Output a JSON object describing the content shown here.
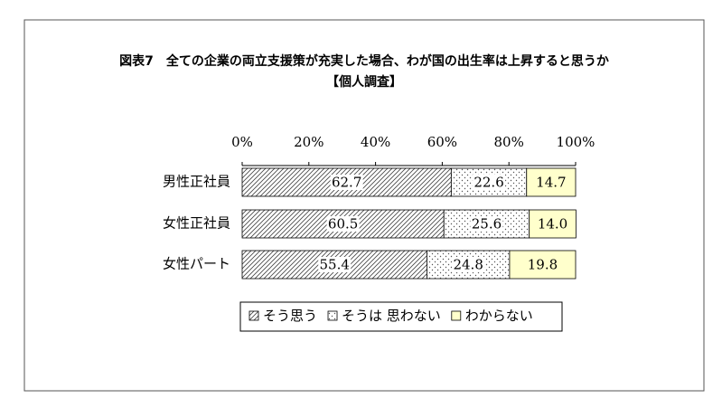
{
  "chart_data": {
    "type": "stacked-bar-horizontal",
    "title": "図表7　全ての企業の両立支援策が充実した場合、わが国の出生率は上昇すると思うか",
    "subtitle": "【個人調査】",
    "categories": [
      "男性正社員",
      "女性正社員",
      "女性パート"
    ],
    "series": [
      {
        "name": "そう思う",
        "color": "#ffffff",
        "pattern": "hatch",
        "values": [
          62.7,
          60.5,
          55.4
        ]
      },
      {
        "name": "そうは 思わない",
        "color": "#ffffff",
        "pattern": "dots",
        "values": [
          22.6,
          25.6,
          24.8
        ]
      },
      {
        "name": "わからない",
        "color": "#ffffcc",
        "pattern": "none",
        "values": [
          14.7,
          14.0,
          19.8
        ],
        "value_labels": [
          "14.7",
          "14.0",
          "19.8"
        ]
      }
    ],
    "xlim": [
      0,
      100
    ],
    "xticks": [
      {
        "value": 0,
        "label": "0%"
      },
      {
        "value": 20,
        "label": "20%"
      },
      {
        "value": 40,
        "label": "40%"
      },
      {
        "value": 60,
        "label": "60%"
      },
      {
        "value": 80,
        "label": "80%"
      },
      {
        "value": 100,
        "label": "100%"
      }
    ],
    "legend": "bottom"
  }
}
